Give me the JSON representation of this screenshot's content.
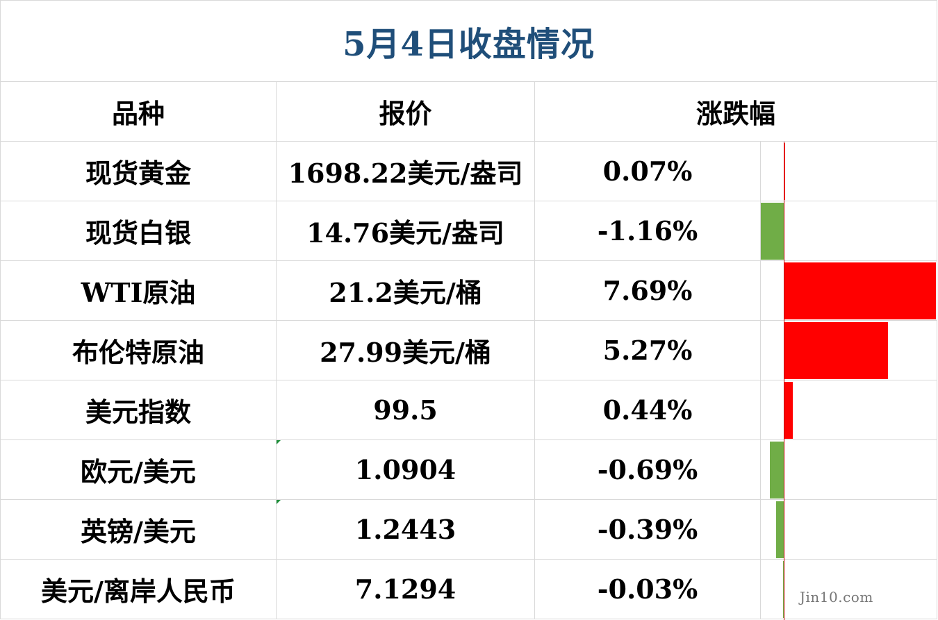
{
  "title": "5月4日收盘情况",
  "headers": {
    "name": "品种",
    "price": "报价",
    "change": "涨跌幅"
  },
  "rows": [
    {
      "name": "现货黄金",
      "price": "1698.22美元/盎司",
      "change": "0.07%",
      "value": 0.07
    },
    {
      "name": "现货白银",
      "price": "14.76美元/盎司",
      "change": "-1.16%",
      "value": -1.16
    },
    {
      "name": "WTI原油",
      "price": "21.2美元/桶",
      "change": "7.69%",
      "value": 7.69
    },
    {
      "name": "布伦特原油",
      "price": "27.99美元/桶",
      "change": "5.27%",
      "value": 5.27
    },
    {
      "name": "美元指数",
      "price": "99.5",
      "change": "0.44%",
      "value": 0.44
    },
    {
      "name": "欧元/美元",
      "price": "1.0904",
      "change": "-0.69%",
      "value": -0.69
    },
    {
      "name": "英镑/美元",
      "price": "1.2443",
      "change": "-0.39%",
      "value": -0.39
    },
    {
      "name": "美元/离岸人民币",
      "price": "7.1294",
      "change": "-0.03%",
      "value": -0.03
    }
  ],
  "colors": {
    "positive": "#ff0000",
    "negative": "#70ad47",
    "title": "#1f4e79"
  },
  "watermark": "Jin10.com"
}
